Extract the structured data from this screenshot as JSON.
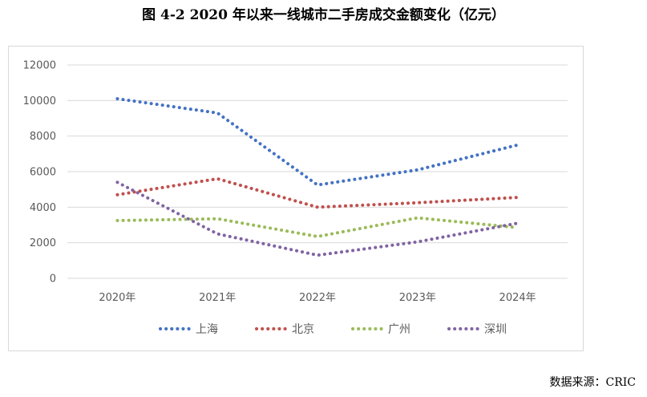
{
  "figure_title": "图 4-2   2020 年以来一线城市二手房成交金额变化（亿元）",
  "source": "数据来源：CRIC",
  "chart_data": {
    "type": "line",
    "categories": [
      "2020年",
      "2021年",
      "2022年",
      "2023年",
      "2024年"
    ],
    "ylim": [
      0,
      12000
    ],
    "yticks": [
      0,
      2000,
      4000,
      6000,
      8000,
      10000,
      12000
    ],
    "grid": true,
    "legend_position": "bottom",
    "series": [
      {
        "name": "上海",
        "color": "#4472c4",
        "values": [
          10100,
          9300,
          5250,
          6100,
          7500
        ]
      },
      {
        "name": "北京",
        "color": "#c0504d",
        "values": [
          4700,
          5600,
          4000,
          4250,
          4550
        ]
      },
      {
        "name": "广州",
        "color": "#9bbb59",
        "values": [
          3250,
          3350,
          2350,
          3400,
          2850
        ]
      },
      {
        "name": "深圳",
        "color": "#8064a2",
        "values": [
          5400,
          2500,
          1300,
          2050,
          3100
        ]
      }
    ]
  }
}
